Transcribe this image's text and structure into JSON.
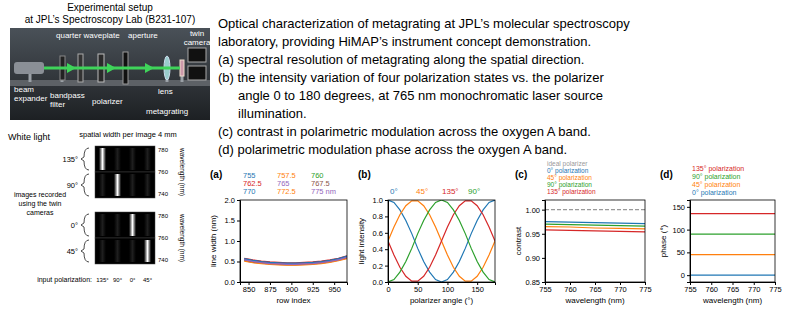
{
  "setup": {
    "title": [
      "Experimental setup",
      "at JPL’s Spectroscopy Lab (B231-107)"
    ],
    "labels": [
      [
        "quarter waveplate"
      ],
      [
        "aperture"
      ],
      [
        "twin",
        "camera"
      ],
      [
        "beam",
        "expander"
      ],
      [
        "bandpass",
        "filter"
      ],
      [
        "polarizer"
      ],
      [
        "lens"
      ],
      [
        "metagrating"
      ]
    ]
  },
  "description": {
    "lines": [
      "Optical characterization of metagrating at JPL’s molecular spectroscopy",
      "laboratory, providing HiMAP’s instrument concept demonstration.",
      "(a) spectral resolution of metagrating along the spatial direction.",
      "(b) the intensity variation of four polarization states vs. the polarizer",
      "angle 0 to 180 degrees, at 765 nm monochromatic laser source",
      "illumination.",
      "(c) contrast in polarimetric modulation across the oxygen A band.",
      "(d) polarimetric modulation phase across the oxygen A band."
    ]
  },
  "white_light": {
    "label": "White light",
    "header": "spatial width per image 4 mm",
    "caption": [
      "images recorded",
      "using the twin",
      "cameras"
    ],
    "rows": [
      "135°",
      "90°",
      "0°",
      "45°"
    ],
    "wavelength_ticks": [
      780,
      760,
      740
    ],
    "wavelength_label": "wavelength (nm)",
    "input_label": "input polarization:",
    "input_polarizations": [
      "135°",
      "90°",
      "0°",
      "45°"
    ]
  },
  "chart_data": [
    {
      "type": "line",
      "title": "(a)",
      "xlabel": "row index",
      "ylabel": "line width (nm)",
      "x": [
        845,
        855,
        865,
        875,
        885,
        895,
        905,
        915,
        925,
        935,
        945,
        955,
        965
      ],
      "xlim": [
        840,
        965
      ],
      "xticks": [
        850,
        875,
        900,
        925,
        950
      ],
      "ylim": [
        0,
        2
      ],
      "yticks": [
        {
          "value": 0,
          "label": "0.0"
        },
        0.5,
        {
          "value": 1,
          "label": "1.0"
        },
        1.5,
        {
          "value": 2,
          "label": "2.0"
        }
      ],
      "series": [
        {
          "name": "755",
          "color": "#1f77b4",
          "values": [
            0.56,
            0.52,
            0.49,
            0.47,
            0.46,
            0.45,
            0.45,
            0.46,
            0.47,
            0.49,
            0.52,
            0.56,
            0.62
          ]
        },
        {
          "name": "757.5",
          "color": "#ff7f0e",
          "values": [
            0.54,
            0.5,
            0.48,
            0.46,
            0.45,
            0.44,
            0.44,
            0.45,
            0.46,
            0.48,
            0.51,
            0.55,
            0.6
          ]
        },
        {
          "name": "760",
          "color": "#2ca02c",
          "values": [
            0.53,
            0.49,
            0.47,
            0.45,
            0.44,
            0.43,
            0.43,
            0.44,
            0.45,
            0.47,
            0.5,
            0.54,
            0.59
          ]
        },
        {
          "name": "762.5",
          "color": "#d62728",
          "values": [
            0.58,
            0.54,
            0.51,
            0.49,
            0.48,
            0.47,
            0.47,
            0.48,
            0.49,
            0.51,
            0.54,
            0.58,
            0.64
          ]
        },
        {
          "name": "765",
          "color": "#9467bd",
          "values": [
            0.55,
            0.51,
            0.48,
            0.46,
            0.45,
            0.44,
            0.44,
            0.45,
            0.46,
            0.48,
            0.51,
            0.55,
            0.61
          ]
        },
        {
          "name": "767.5",
          "color": "#8c564b",
          "values": [
            0.52,
            0.48,
            0.46,
            0.44,
            0.43,
            0.42,
            0.42,
            0.43,
            0.44,
            0.46,
            0.49,
            0.53,
            0.58
          ]
        },
        {
          "name": "770",
          "color": "#1f77b4",
          "values": [
            0.57,
            0.53,
            0.5,
            0.48,
            0.47,
            0.46,
            0.46,
            0.47,
            0.48,
            0.5,
            0.53,
            0.57,
            0.63
          ]
        },
        {
          "name": "772.5",
          "color": "#ff7f0e",
          "values": [
            0.51,
            0.47,
            0.45,
            0.43,
            0.42,
            0.41,
            0.41,
            0.42,
            0.43,
            0.45,
            0.48,
            0.52,
            0.57
          ]
        },
        {
          "name": "775 nm",
          "color": "#9467bd",
          "values": [
            0.54,
            0.5,
            0.47,
            0.45,
            0.44,
            0.43,
            0.43,
            0.44,
            0.45,
            0.47,
            0.5,
            0.54,
            0.6
          ]
        }
      ]
    },
    {
      "type": "line",
      "title": "(b)",
      "xlabel": "polarizer angle (°)",
      "ylabel": "light intensity",
      "x": [
        0,
        10,
        20,
        30,
        40,
        50,
        60,
        70,
        80,
        90,
        100,
        110,
        120,
        130,
        140,
        150,
        160,
        170,
        180
      ],
      "xlim": [
        0,
        180
      ],
      "xticks": [
        0,
        50,
        100,
        150
      ],
      "ylim": [
        0,
        1
      ],
      "yticks": [
        {
          "value": 0,
          "label": "0.0"
        },
        0.2,
        0.4,
        0.6,
        0.8,
        {
          "value": 1,
          "label": "1.0"
        }
      ],
      "series": [
        {
          "name": "0°",
          "color": "#1f77b4",
          "values": [
            1,
            0.97,
            0.88,
            0.75,
            0.59,
            0.41,
            0.25,
            0.12,
            0.03,
            0,
            0.03,
            0.12,
            0.25,
            0.41,
            0.59,
            0.75,
            0.88,
            0.97,
            1
          ]
        },
        {
          "name": "45°",
          "color": "#ff7f0e",
          "values": [
            0.5,
            0.67,
            0.82,
            0.93,
            0.99,
            0.99,
            0.93,
            0.82,
            0.67,
            0.5,
            0.33,
            0.18,
            0.07,
            0.01,
            0.01,
            0.07,
            0.18,
            0.33,
            0.5
          ]
        },
        {
          "name": "135°",
          "color": "#d62728",
          "values": [
            0.5,
            0.33,
            0.18,
            0.07,
            0.01,
            0.01,
            0.07,
            0.18,
            0.33,
            0.5,
            0.67,
            0.82,
            0.93,
            0.99,
            0.99,
            0.93,
            0.82,
            0.67,
            0.5
          ]
        },
        {
          "name": "90°",
          "color": "#2ca02c",
          "values": [
            0,
            0.03,
            0.12,
            0.25,
            0.41,
            0.59,
            0.75,
            0.88,
            0.97,
            1,
            0.97,
            0.88,
            0.75,
            0.59,
            0.41,
            0.25,
            0.12,
            0.03,
            0
          ]
        }
      ]
    },
    {
      "type": "line",
      "title": "(c)",
      "xlabel": "wavelength (nm)",
      "ylabel": "contrast",
      "x": [
        755,
        760,
        765,
        770,
        775
      ],
      "xlim": [
        755,
        775
      ],
      "xticks": [
        755,
        760,
        765,
        770,
        775
      ],
      "ylim": [
        0.85,
        1.02
      ],
      "yticks": [
        0.85,
        {
          "value": 0.9,
          "label": "0.90"
        },
        0.95,
        {
          "value": 1,
          "label": "1.00"
        }
      ],
      "series": [
        {
          "name": "ideal polarizer",
          "color": "#999999",
          "line_style": "dashed",
          "values": [
            1,
            1,
            1,
            1,
            1
          ]
        },
        {
          "name": "0° polarization",
          "color": "#1f77b4",
          "values": [
            0.975,
            0.974,
            0.973,
            0.972,
            0.971
          ]
        },
        {
          "name": "45° polarization",
          "color": "#ff7f0e",
          "values": [
            0.965,
            0.964,
            0.962,
            0.961,
            0.96
          ]
        },
        {
          "name": "90° polarization",
          "color": "#2ca02c",
          "values": [
            0.97,
            0.969,
            0.968,
            0.967,
            0.966
          ]
        },
        {
          "name": "135° polarization",
          "color": "#d62728",
          "values": [
            0.958,
            0.957,
            0.956,
            0.955,
            0.954
          ]
        }
      ]
    },
    {
      "type": "line",
      "title": "(d)",
      "xlabel": "wavelength (nm)",
      "ylabel": "phase (°)",
      "x": [
        755,
        760,
        765,
        770,
        775
      ],
      "xlim": [
        755,
        775
      ],
      "xticks": [
        755,
        760,
        765,
        770,
        775
      ],
      "ylim": [
        -15,
        165
      ],
      "yticks": [
        0,
        50,
        100,
        150
      ],
      "series": [
        {
          "name": "135° polarization",
          "color": "#d62728",
          "values": [
            135,
            135,
            135,
            135,
            135
          ]
        },
        {
          "name": "90° polarization",
          "color": "#2ca02c",
          "values": [
            90,
            90,
            90,
            90,
            90
          ]
        },
        {
          "name": "45° polarization",
          "color": "#ff7f0e",
          "values": [
            45,
            45,
            45,
            45,
            45
          ]
        },
        {
          "name": "0° polarization",
          "color": "#1f77b4",
          "values": [
            0,
            0,
            0,
            0,
            0
          ]
        }
      ]
    }
  ]
}
